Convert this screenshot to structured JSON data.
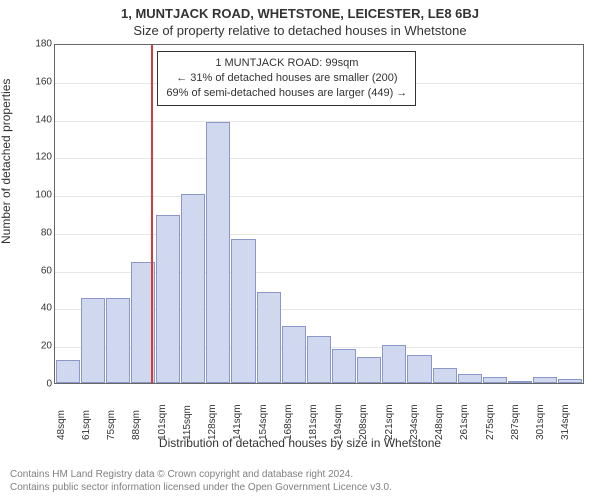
{
  "titles": {
    "line1": "1, MUNTJACK ROAD, WHETSTONE, LEICESTER, LE8 6BJ",
    "line2": "Size of property relative to detached houses in Whetstone"
  },
  "chart": {
    "type": "histogram",
    "ylabel": "Number of detached properties",
    "xlabel": "Distribution of detached houses by size in Whetstone",
    "ylim": [
      0,
      180
    ],
    "ytick_step": 20,
    "yticks": [
      0,
      20,
      40,
      60,
      80,
      100,
      120,
      140,
      160,
      180
    ],
    "x_categories": [
      "48sqm",
      "61sqm",
      "75sqm",
      "88sqm",
      "101sqm",
      "115sqm",
      "128sqm",
      "141sqm",
      "154sqm",
      "168sqm",
      "181sqm",
      "194sqm",
      "208sqm",
      "221sqm",
      "234sqm",
      "248sqm",
      "261sqm",
      "275sqm",
      "287sqm",
      "301sqm",
      "314sqm"
    ],
    "values": [
      12,
      45,
      45,
      64,
      89,
      100,
      138,
      76,
      48,
      30,
      25,
      18,
      14,
      20,
      15,
      8,
      5,
      3,
      0,
      3,
      2
    ],
    "bar_fill": "#cfd8ef",
    "bar_stroke": "#8a97c7",
    "grid_color": "#e6e6e6",
    "axis_color": "#666666",
    "background_color": "#ffffff",
    "reference_line": {
      "x_index_between": [
        3,
        4
      ],
      "fraction": 0.82,
      "color": "#d23c3c"
    },
    "annotation": {
      "line1": "1 MUNTJACK ROAD: 99sqm",
      "line2": "← 31% of detached houses are smaller (200)",
      "line3": "69% of semi-detached houses are larger (449) →",
      "border_color": "#333333",
      "background": "#ffffff",
      "fontsize": 11
    },
    "label_fontsize": 12,
    "tick_fontsize": 10
  },
  "footer": {
    "line1": "Contains HM Land Registry data © Crown copyright and database right 2024.",
    "line2": "Contains public sector information licensed under the Open Government Licence v3.0."
  }
}
